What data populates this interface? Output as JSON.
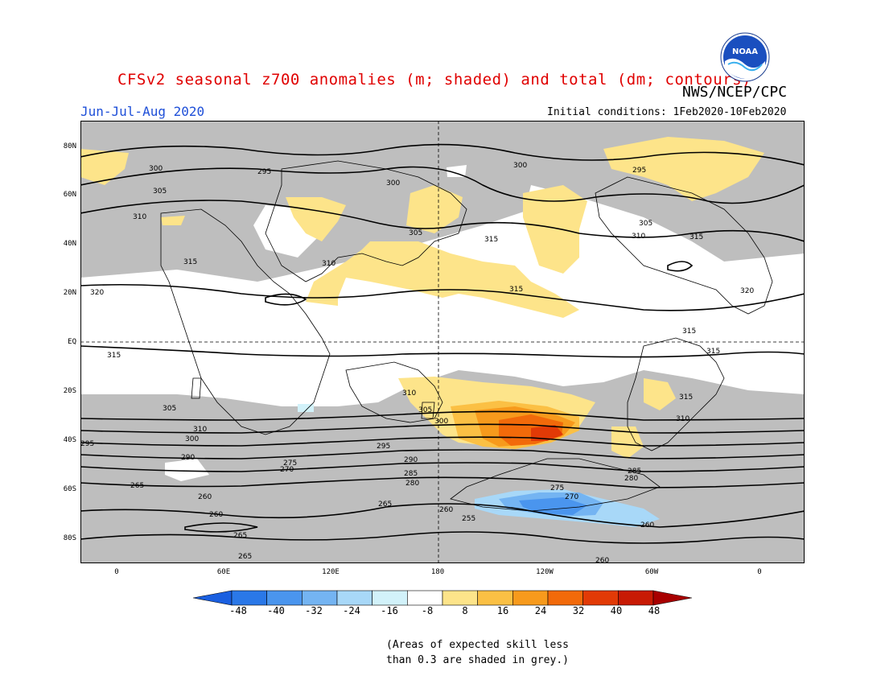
{
  "title": "CFSv2 seasonal z700 anomalies (m; shaded) and total (dm; contours)",
  "agency": "NWS/NCEP/CPC",
  "season": "Jun-Jul-Aug 2020",
  "initial_conditions": "Initial conditions: 1Feb2020-10Feb2020",
  "logo_text": "NOAA",
  "lat_labels": [
    "80N",
    "60N",
    "40N",
    "20N",
    "EQ",
    "20S",
    "40S",
    "60S",
    "80S"
  ],
  "lon_labels": [
    "0",
    "60E",
    "120E",
    "180",
    "120W",
    "60W",
    "0"
  ],
  "colorbar": {
    "ticks": [
      "-48",
      "-40",
      "-32",
      "-24",
      "-16",
      "-8",
      "8",
      "16",
      "24",
      "32",
      "40",
      "48"
    ],
    "colors": [
      "#1a5fe0",
      "#2a78e8",
      "#4a95ee",
      "#74b4f2",
      "#a8d8f8",
      "#d2f2fa",
      "#ffffff",
      "#fde48a",
      "#fbc044",
      "#f79a1c",
      "#f26a0a",
      "#e23a06",
      "#c81a04",
      "#a80000"
    ]
  },
  "contour_labels": {
    "north": [
      "300",
      "295",
      "305",
      "310",
      "300",
      "300",
      "295",
      "315",
      "305",
      "310",
      "315",
      "315",
      "320",
      "320",
      "310",
      "305"
    ],
    "tropics": [
      "315",
      "315",
      "315",
      "315",
      "310",
      "315",
      "310"
    ],
    "south": [
      "305",
      "300",
      "295",
      "310",
      "305",
      "300",
      "295",
      "290",
      "285",
      "290",
      "280",
      "285",
      "280",
      "275",
      "270",
      "265",
      "260",
      "265",
      "260",
      "255",
      "275",
      "270",
      "265",
      "265",
      "260",
      "260",
      "260"
    ]
  },
  "note": [
    "(Areas of expected skill less",
    "than 0.3 are shaded in grey.)"
  ]
}
